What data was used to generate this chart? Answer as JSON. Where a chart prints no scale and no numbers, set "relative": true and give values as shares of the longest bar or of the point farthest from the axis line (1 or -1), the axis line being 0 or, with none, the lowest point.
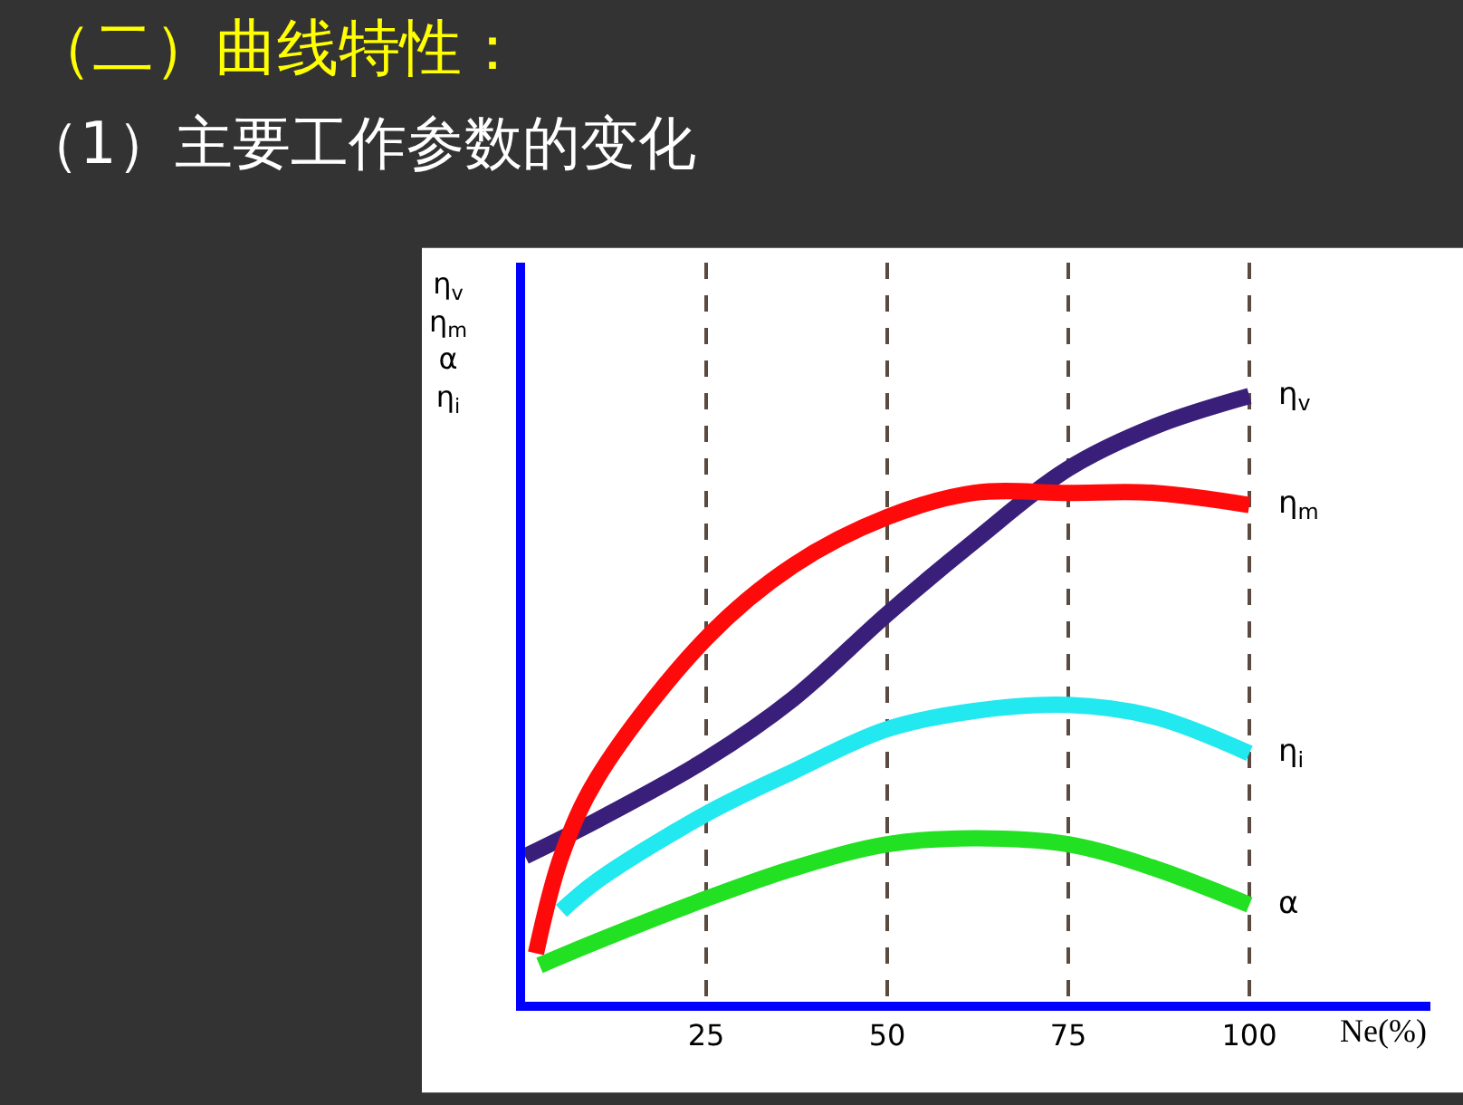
{
  "chart_data": {
    "type": "line",
    "title": "（二）曲线特性：",
    "subtitle": "（1）主要工作参数的变化",
    "xlabel": "Ne(%)",
    "ylabel": "η$_{v}$\nη$_{m}$\nα\nη$_{i}$",
    "relative": true,
    "xlim": [
      0,
      125
    ],
    "xticks": [
      25,
      50,
      75,
      100
    ],
    "grid": "x",
    "series": [
      {
        "name": "η$_{v}$",
        "color": "#3a1f7a",
        "x": [
          0,
          10,
          25,
          37,
          50,
          62,
          75,
          87,
          100
        ],
        "values": [
          0.24,
          0.3,
          0.4,
          0.5,
          0.64,
          0.76,
          0.88,
          0.95,
          1.0
        ]
      },
      {
        "name": "η$_{m}$",
        "color": "#ff0a0a",
        "x": [
          1.5,
          5,
          10,
          25,
          37,
          50,
          62,
          75,
          87,
          100
        ],
        "values": [
          0.08,
          0.24,
          0.37,
          0.6,
          0.72,
          0.8,
          0.84,
          0.84,
          0.84,
          0.82
        ]
      },
      {
        "name": "η$_{i}$",
        "color": "#22e8f0",
        "x": [
          5,
          10,
          25,
          37,
          50,
          62,
          75,
          87,
          100
        ],
        "values": [
          0.15,
          0.2,
          0.31,
          0.38,
          0.45,
          0.48,
          0.49,
          0.47,
          0.41
        ]
      },
      {
        "name": "α",
        "color": "#22e022",
        "x": [
          2,
          10,
          25,
          37,
          50,
          62,
          75,
          87,
          100
        ],
        "values": [
          0.06,
          0.1,
          0.17,
          0.22,
          0.26,
          0.27,
          0.26,
          0.22,
          0.16
        ]
      }
    ]
  }
}
